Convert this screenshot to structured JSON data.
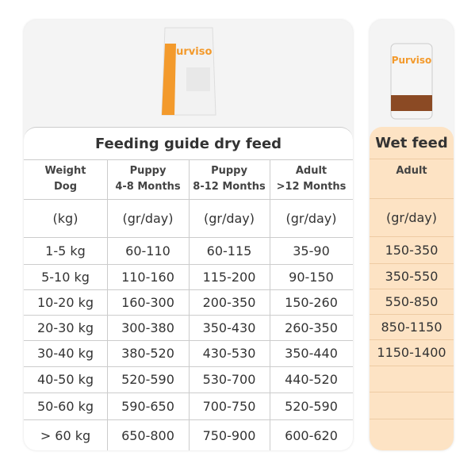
{
  "dry_feed": {
    "brand": "Purviso",
    "title": "Feeding guide dry feed",
    "columns": [
      [
        "Weight",
        "Dog"
      ],
      [
        "Puppy",
        "4-8 Months"
      ],
      [
        "Puppy",
        "8-12 Months"
      ],
      [
        "Adult",
        ">12 Months"
      ]
    ],
    "units": [
      "(kg)",
      "(gr/day)",
      "(gr/day)",
      "(gr/day)"
    ],
    "rows": [
      [
        "1-5 kg",
        "60-110",
        "60-115",
        "35-90"
      ],
      [
        "5-10 kg",
        "110-160",
        "115-200",
        "90-150"
      ],
      [
        "10-20 kg",
        "160-300",
        "200-350",
        "150-260"
      ],
      [
        "20-30 kg",
        "300-380",
        "350-430",
        "260-350"
      ],
      [
        "30-40 kg",
        "380-520",
        "430-530",
        "350-440"
      ],
      [
        "40-50 kg",
        "520-590",
        "530-700",
        "440-520"
      ],
      [
        "50-60 kg",
        "590-650",
        "700-750",
        "520-590"
      ],
      [
        "> 60 kg",
        "650-800",
        "750-900",
        "600-620"
      ]
    ]
  },
  "wet_feed": {
    "brand": "Purviso",
    "title": "Wet feed",
    "column": "Adult",
    "unit": "(gr/day)",
    "rows": [
      "150-350",
      "350-550",
      "550-850",
      "850-1150",
      "1150-1400"
    ]
  }
}
